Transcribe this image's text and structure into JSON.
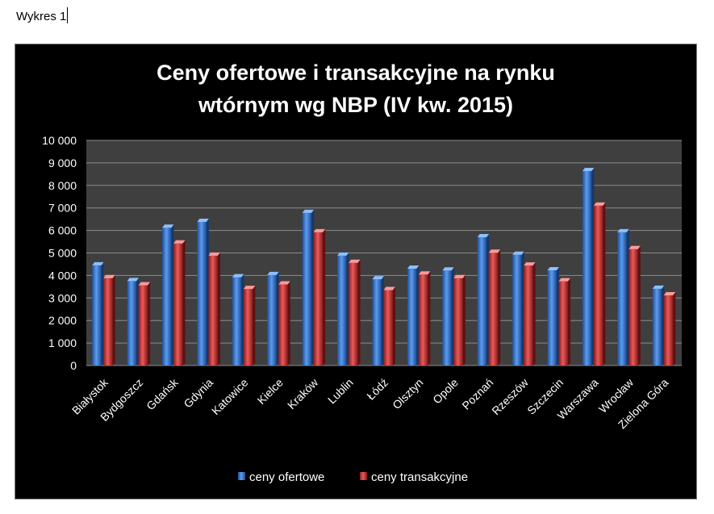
{
  "document": {
    "label": "Wykres 1"
  },
  "colors": {
    "chart_background": "#000000",
    "plot_background": "#3f3f3f",
    "gridline": "#8c8c8c",
    "text": "#ffffff",
    "series_offer": "#3d7fd9",
    "series_transaction": "#d63a3a"
  },
  "chart_data": {
    "type": "bar",
    "title_lines": [
      "Ceny ofertowe i transakcyjne na rynku",
      "wtórnym wg NBP (IV kw. 2015)"
    ],
    "xlabel": "",
    "ylabel": "",
    "ylim": [
      0,
      10000
    ],
    "ytick_values": [
      0,
      1000,
      2000,
      3000,
      4000,
      5000,
      6000,
      7000,
      8000,
      9000,
      10000
    ],
    "ytick_labels": [
      "0",
      "1 000",
      "2 000",
      "3 000",
      "4 000",
      "5 000",
      "6 000",
      "7 000",
      "8 000",
      "9 000",
      "10 000"
    ],
    "grid": true,
    "legend_position": "bottom",
    "categories": [
      "Białystok",
      "Bydgoszcz",
      "Gdańsk",
      "Gdynia",
      "Katowice",
      "Kielce",
      "Kraków",
      "Lublin",
      "Łódź",
      "Olsztyn",
      "Opole",
      "Poznań",
      "Rzeszów",
      "Szczecin",
      "Warszawa",
      "Wrocław",
      "Zielona Góra"
    ],
    "series": [
      {
        "name": "ceny ofertowe",
        "color": "#3d7fd9",
        "values": [
          4450,
          3750,
          6120,
          6380,
          3920,
          4020,
          6780,
          4880,
          3830,
          4300,
          4220,
          5700,
          4920,
          4230,
          8640,
          5920,
          3410
        ]
      },
      {
        "name": "ceny transakcyjne",
        "color": "#d63a3a",
        "values": [
          3880,
          3560,
          5420,
          4880,
          3400,
          3600,
          5920,
          4560,
          3350,
          4040,
          3880,
          5010,
          4440,
          3740,
          7100,
          5170,
          3120
        ]
      }
    ]
  }
}
